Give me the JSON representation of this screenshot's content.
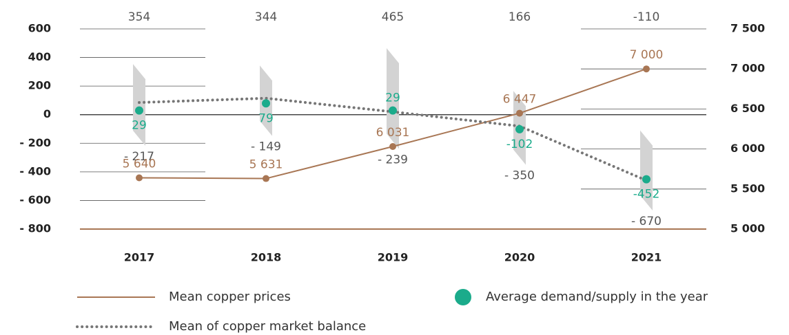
{
  "chart_data": {
    "type": "line",
    "categories": [
      "2017",
      "2018",
      "2019",
      "2020",
      "2021"
    ],
    "series": [
      {
        "name": "Mean copper prices",
        "color": "#a87654",
        "axis": "y2",
        "style": "solid",
        "values": [
          5640,
          5631,
          6031,
          6447,
          7000
        ],
        "value_labels": [
          "5 640",
          "5 631",
          "6 031",
          "6 447",
          "7 000"
        ]
      },
      {
        "name": "Mean of copper market balance",
        "color": "#767676",
        "style": "dotted",
        "values": [
          85,
          115,
          20,
          -80,
          -460
        ]
      },
      {
        "name": "Average demand/supply in the year",
        "color": "#1bab8b",
        "style": "marker",
        "values": [
          29,
          79,
          29,
          -102,
          -452
        ]
      }
    ],
    "ranges": {
      "color": "#d3d3d3",
      "high": [
        354,
        344,
        465,
        166,
        -110
      ],
      "low": [
        -217,
        -149,
        -239,
        -350,
        -670
      ],
      "low_labels": [
        "- 217",
        "- 149",
        "- 239",
        "- 350",
        "- 670"
      ]
    },
    "ylim": [
      -800,
      600
    ],
    "yticks": [
      600,
      400,
      200,
      0,
      {
        "value": -200,
        "label": "- 200"
      },
      {
        "value": -400,
        "label": "- 400"
      },
      {
        "value": -600,
        "label": "- 600"
      },
      {
        "value": -800,
        "label": "- 800"
      }
    ],
    "y2lim": [
      5000,
      7500
    ],
    "y2ticks": [
      {
        "value": 7500,
        "label": "7 500"
      },
      {
        "value": 7000,
        "label": "7 000"
      },
      {
        "value": 6500,
        "label": "6 500"
      },
      {
        "value": 6000,
        "label": "6 000"
      },
      {
        "value": 5500,
        "label": "5 500"
      },
      {
        "value": 5000,
        "label": "5 000"
      }
    ],
    "grid": true
  }
}
